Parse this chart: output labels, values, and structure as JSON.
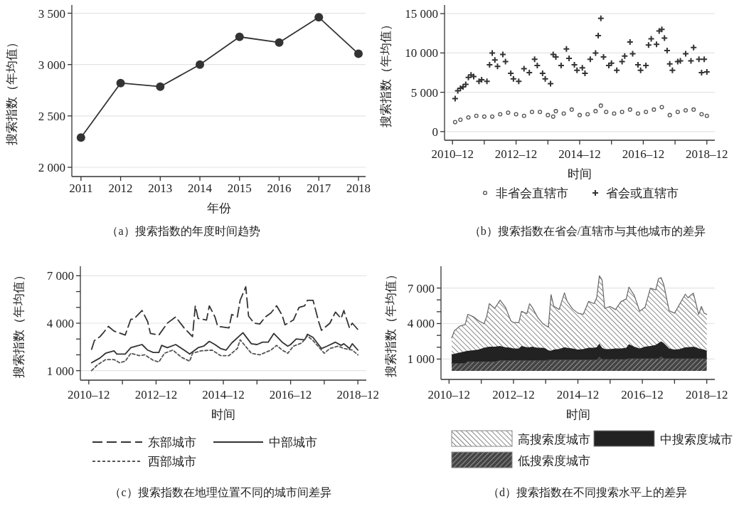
{
  "chart_data": [
    {
      "type": "line",
      "title": "（a）搜索指数的年度时间趋势",
      "xlabel": "年份",
      "ylabel": "搜索指数（年均值）",
      "marker": "circle",
      "grid": "y",
      "x": [
        2011,
        2012,
        2013,
        2014,
        2015,
        2016,
        2017,
        2018
      ],
      "series": [
        {
          "color": "#333333",
          "values": [
            2290,
            2820,
            2785,
            3000,
            3270,
            3215,
            3460,
            3105
          ]
        }
      ],
      "xlim": [
        2010.77,
        2018.18
      ],
      "xticks": [
        2011,
        2012,
        2013,
        2014,
        2015,
        2016,
        2017,
        2018
      ],
      "ylim": [
        1910,
        3580
      ],
      "yticks": [
        {
          "value": 2000,
          "label": "2 000"
        },
        {
          "value": 2500,
          "label": "2 500"
        },
        {
          "value": 3000,
          "label": "3 000"
        },
        {
          "value": 3500,
          "label": "3 500"
        }
      ]
    },
    {
      "type": "scatter",
      "title": "（b）搜索指数在省会/直辖市与其他城市的差异",
      "xlabel": "时间",
      "ylabel": "搜索指数（年均值）",
      "grid": "y",
      "legend": "bottom",
      "series": [
        {
          "name": "非省会直辖市",
          "color": "#555555",
          "marker": "circle",
          "x": [
            "2011-01",
            "2011-03",
            "2011-06",
            "2011-09",
            "2011-12",
            "2012-03",
            "2012-06",
            "2012-09",
            "2012-12",
            "2013-03",
            "2013-06",
            "2013-09",
            "2013-12",
            "2014-02",
            "2014-03",
            "2014-06",
            "2014-09",
            "2014-12",
            "2015-03",
            "2015-06",
            "2015-08",
            "2015-10",
            "2016-01",
            "2016-04",
            "2016-07",
            "2016-10",
            "2017-01",
            "2017-04",
            "2017-07",
            "2017-10",
            "2018-01",
            "2018-04",
            "2018-07",
            "2018-10",
            "2018-12"
          ],
          "values": [
            1200,
            1500,
            1800,
            2000,
            1900,
            1900,
            2200,
            2400,
            2200,
            2000,
            2500,
            2500,
            2100,
            1900,
            2600,
            2300,
            2800,
            2100,
            2200,
            2600,
            3300,
            2500,
            2300,
            2500,
            2800,
            2300,
            2500,
            2800,
            3100,
            2100,
            2500,
            2700,
            2800,
            2200,
            2000
          ]
        },
        {
          "name": "省会或直辖市",
          "color": "#333333",
          "marker": "cross",
          "x": [
            "2011-01",
            "2011-02",
            "2011-03",
            "2011-04",
            "2011-05",
            "2011-06",
            "2011-07",
            "2011-08",
            "2011-10",
            "2011-11",
            "2012-01",
            "2012-02",
            "2012-03",
            "2012-04",
            "2012-05",
            "2012-07",
            "2012-08",
            "2012-10",
            "2012-11",
            "2013-01",
            "2013-03",
            "2013-05",
            "2013-07",
            "2013-08",
            "2013-10",
            "2013-11",
            "2014-01",
            "2014-02",
            "2014-03",
            "2014-05",
            "2014-07",
            "2014-08",
            "2014-10",
            "2014-11",
            "2015-01",
            "2015-02",
            "2015-04",
            "2015-06",
            "2015-07",
            "2015-08",
            "2015-09",
            "2015-11",
            "2015-12",
            "2016-02",
            "2016-04",
            "2016-05",
            "2016-07",
            "2016-08",
            "2016-10",
            "2016-11",
            "2017-01",
            "2017-02",
            "2017-03",
            "2017-05",
            "2017-06",
            "2017-07",
            "2017-08",
            "2017-09",
            "2017-10",
            "2017-11",
            "2018-01",
            "2018-02",
            "2018-04",
            "2018-06",
            "2018-07",
            "2018-09",
            "2018-10",
            "2018-11",
            "2018-12"
          ],
          "values": [
            4200,
            5200,
            5500,
            5700,
            6000,
            6900,
            7200,
            7000,
            6400,
            6600,
            6400,
            8500,
            10000,
            9100,
            8300,
            9800,
            8900,
            7400,
            6700,
            6400,
            8000,
            7500,
            9200,
            8400,
            7400,
            6700,
            6100,
            9800,
            9500,
            8400,
            10500,
            9300,
            8500,
            7800,
            8100,
            7400,
            9200,
            10000,
            12200,
            14400,
            9500,
            8400,
            8700,
            7800,
            8900,
            9600,
            11400,
            9900,
            8500,
            7800,
            8400,
            11000,
            11800,
            11100,
            12800,
            13000,
            11900,
            10300,
            8600,
            7800,
            8900,
            9000,
            9900,
            9000,
            10700,
            9200,
            7500,
            9200,
            7600
          ]
        }
      ],
      "xlim": [
        "2010-09",
        "2019-03"
      ],
      "xticks": [
        {
          "value": "2010-12",
          "label": "2010–12"
        },
        {
          "value": "2011-12",
          "label": null
        },
        {
          "value": "2012-12",
          "label": "2012–12"
        },
        {
          "value": "2013-12",
          "label": null
        },
        {
          "value": "2014-12",
          "label": "2014–12"
        },
        {
          "value": "2015-12",
          "label": null
        },
        {
          "value": "2016-12",
          "label": "2016–12"
        },
        {
          "value": "2017-12",
          "label": null
        },
        {
          "value": "2018-12",
          "label": "2018–12"
        }
      ],
      "ylim": [
        -1100,
        16100
      ],
      "yticks": [
        0,
        {
          "value": 5000,
          "label": "5 000"
        },
        {
          "value": 10000,
          "label": "10 000"
        },
        {
          "value": 15000,
          "label": "15 000"
        }
      ]
    },
    {
      "type": "line",
      "title": "（c）搜索指数在地理位置不同的城市间差异",
      "xlabel": "时间",
      "ylabel": "搜索指数（年均值）",
      "grid": "y",
      "legend": "bottom",
      "series": [
        {
          "name": "东部城市",
          "color": "#333333",
          "line_style": "dashed",
          "x": [
            "2011-01",
            "2011-02",
            "2011-04",
            "2011-05",
            "2011-07",
            "2011-09",
            "2012-01",
            "2012-03",
            "2012-04",
            "2012-07",
            "2012-09",
            "2012-10",
            "2013-01",
            "2013-04",
            "2013-07",
            "2013-10",
            "2014-01",
            "2014-02",
            "2014-03",
            "2014-06",
            "2014-07",
            "2014-09",
            "2014-10",
            "2015-02",
            "2015-03",
            "2015-05",
            "2015-06",
            "2015-08",
            "2015-09",
            "2015-11",
            "2016-01",
            "2016-03",
            "2016-05",
            "2016-07",
            "2016-09",
            "2016-10",
            "2017-01",
            "2017-03",
            "2017-05",
            "2017-06",
            "2017-08",
            "2017-10",
            "2017-11",
            "2018-02",
            "2018-04",
            "2018-06",
            "2018-07",
            "2018-09",
            "2018-10",
            "2018-12"
          ],
          "values": [
            2350,
            2900,
            3150,
            3350,
            3800,
            3500,
            3250,
            4250,
            4250,
            4800,
            4100,
            3350,
            3250,
            4000,
            4400,
            3700,
            3150,
            5100,
            4300,
            4200,
            5100,
            4400,
            3800,
            3700,
            4550,
            4400,
            5450,
            6300,
            4450,
            4000,
            3950,
            4400,
            4650,
            5100,
            4500,
            3900,
            4200,
            5000,
            5100,
            5450,
            5450,
            4100,
            3550,
            4000,
            4700,
            4300,
            4800,
            3700,
            4000,
            3600
          ]
        },
        {
          "name": "中部城市",
          "color": "#333333",
          "line_style": "solid",
          "x": [
            "2011-01",
            "2011-04",
            "2011-06",
            "2011-09",
            "2011-10",
            "2012-01",
            "2012-03",
            "2012-05",
            "2012-07",
            "2012-09",
            "2012-11",
            "2013-01",
            "2013-02",
            "2013-04",
            "2013-07",
            "2013-10",
            "2013-12",
            "2014-03",
            "2014-05",
            "2014-07",
            "2014-09",
            "2014-11",
            "2015-01",
            "2015-03",
            "2015-07",
            "2015-10",
            "2015-12",
            "2016-02",
            "2016-04",
            "2016-06",
            "2016-09",
            "2016-11",
            "2016-12",
            "2017-02",
            "2017-05",
            "2017-06",
            "2017-08",
            "2017-11",
            "2018-01",
            "2018-04",
            "2018-06",
            "2018-07",
            "2018-09",
            "2018-10",
            "2018-12"
          ],
          "values": [
            1500,
            1800,
            2100,
            2250,
            2050,
            2050,
            2450,
            2550,
            2650,
            2300,
            2150,
            2150,
            2600,
            2450,
            2650,
            2300,
            2050,
            2450,
            2550,
            2850,
            2650,
            2400,
            2300,
            2750,
            3400,
            2700,
            2650,
            2800,
            2800,
            3350,
            2800,
            2550,
            2650,
            3000,
            2950,
            3300,
            3100,
            2400,
            2550,
            2800,
            2600,
            2700,
            2400,
            2700,
            2300
          ]
        },
        {
          "name": "西部城市",
          "color": "#555555",
          "line_style": "dotted",
          "x": [
            "2011-01",
            "2011-03",
            "2011-06",
            "2011-09",
            "2011-11",
            "2012-01",
            "2012-03",
            "2012-06",
            "2012-08",
            "2012-11",
            "2013-01",
            "2013-03",
            "2013-06",
            "2013-09",
            "2013-12",
            "2014-01",
            "2014-04",
            "2014-08",
            "2014-11",
            "2015-02",
            "2015-05",
            "2015-06",
            "2015-10",
            "2016-01",
            "2016-05",
            "2016-07",
            "2016-09",
            "2016-11",
            "2017-01",
            "2017-04",
            "2017-06",
            "2017-08",
            "2017-12",
            "2018-02",
            "2018-05",
            "2018-07",
            "2018-10",
            "2018-12"
          ],
          "values": [
            1000,
            1350,
            1700,
            1700,
            1500,
            1600,
            2100,
            1950,
            2000,
            1650,
            1550,
            2100,
            2300,
            1850,
            1600,
            2100,
            2250,
            2300,
            1950,
            1950,
            2400,
            2950,
            2100,
            2000,
            2300,
            2600,
            2300,
            2100,
            2550,
            2750,
            3200,
            2900,
            2100,
            2400,
            2550,
            2400,
            2300,
            2000
          ]
        }
      ],
      "xlim": [
        "2010-09",
        "2019-03"
      ],
      "xticks": [
        {
          "value": "2010-12",
          "label": "2010–12"
        },
        {
          "value": "2011-12",
          "label": null
        },
        {
          "value": "2012-12",
          "label": "2012–12"
        },
        {
          "value": "2013-12",
          "label": null
        },
        {
          "value": "2014-12",
          "label": "2014–12"
        },
        {
          "value": "2015-12",
          "label": null
        },
        {
          "value": "2016-12",
          "label": "2016–12"
        },
        {
          "value": "2017-12",
          "label": null
        },
        {
          "value": "2018-12",
          "label": "2018–12"
        }
      ],
      "ylim": [
        400,
        7600
      ],
      "yticks": [
        {
          "value": 1000,
          "label": "1 000"
        },
        {
          "value": 2000,
          "label": null
        },
        {
          "value": 3000,
          "label": null
        },
        {
          "value": 4000,
          "label": "4 000"
        },
        {
          "value": 5000,
          "label": null
        },
        {
          "value": 6000,
          "label": null
        },
        {
          "value": 7000,
          "label": "7 000"
        }
      ]
    },
    {
      "type": "area",
      "stacked": true,
      "title": "（d）搜索指数在不同搜索水平上的差异",
      "xlabel": "时间",
      "ylabel": "搜索指数（年均值）",
      "grid": "y",
      "legend": "bottom",
      "x": [
        "2011-01",
        "2011-02",
        "2011-04",
        "2011-06",
        "2011-07",
        "2011-09",
        "2011-11",
        "2012-01",
        "2012-02",
        "2012-03",
        "2012-05",
        "2012-07",
        "2012-09",
        "2012-11",
        "2012-12",
        "2013-02",
        "2013-03",
        "2013-05",
        "2013-06",
        "2013-07",
        "2013-09",
        "2013-11",
        "2013-12",
        "2014-01",
        "2014-02",
        "2014-03",
        "2014-05",
        "2014-07",
        "2014-08",
        "2014-10",
        "2014-12",
        "2015-02",
        "2015-04",
        "2015-06",
        "2015-07",
        "2015-08",
        "2015-09",
        "2015-10",
        "2015-12",
        "2016-02",
        "2016-04",
        "2016-06",
        "2016-07",
        "2016-09",
        "2016-11",
        "2017-01",
        "2017-03",
        "2017-05",
        "2017-06",
        "2017-07",
        "2017-08",
        "2017-10",
        "2017-12",
        "2018-02",
        "2018-04",
        "2018-05",
        "2018-07",
        "2018-08",
        "2018-09",
        "2018-10",
        "2018-11",
        "2018-12"
      ],
      "series": [
        {
          "name": "低搜索度城市",
          "color": "#444444",
          "values": [
            650,
            650,
            650,
            650,
            800,
            800,
            800,
            800,
            800,
            800,
            800,
            900,
            900,
            900,
            900,
            900,
            900,
            900,
            900,
            900,
            900,
            900,
            900,
            950,
            950,
            950,
            950,
            950,
            950,
            950,
            950,
            950,
            950,
            950,
            950,
            1200,
            1000,
            1000,
            1000,
            1000,
            1000,
            1000,
            1050,
            1050,
            1050,
            1050,
            1050,
            1050,
            1050,
            1250,
            1050,
            1050,
            1050,
            1050,
            1050,
            1050,
            1050,
            1050,
            1050,
            1050,
            1050,
            1050
          ]
        },
        {
          "name": "中搜索度城市",
          "color": "#222222",
          "values": [
            750,
            800,
            900,
            1000,
            900,
            950,
            1000,
            1150,
            1200,
            1250,
            1250,
            1200,
            1100,
            1050,
            1000,
            1000,
            1200,
            1100,
            1100,
            1150,
            1050,
            1050,
            1000,
            800,
            750,
            850,
            900,
            1050,
            1000,
            950,
            850,
            900,
            1000,
            1000,
            1050,
            1100,
            950,
            850,
            850,
            900,
            900,
            950,
            1200,
            1000,
            850,
            1000,
            1050,
            1150,
            1300,
            1250,
            1300,
            850,
            750,
            800,
            950,
            950,
            1000,
            950,
            850,
            800,
            750,
            650
          ]
        },
        {
          "name": "高搜索度城市",
          "color": "#666666",
          "values": [
            1380,
            1930,
            2230,
            2270,
            3080,
            2830,
            2440,
            2030,
            2580,
            3630,
            3230,
            3880,
            3380,
            2290,
            2180,
            2180,
            2940,
            2840,
            3680,
            3330,
            2570,
            2030,
            1940,
            1950,
            4740,
            3680,
            3330,
            4590,
            3930,
            3340,
            3080,
            2930,
            3930,
            3730,
            4180,
            5740,
            5730,
            3430,
            3590,
            3280,
            3940,
            4130,
            4830,
            4330,
            3140,
            3330,
            4880,
            4640,
            5430,
            5380,
            4930,
            3180,
            3080,
            3830,
            4480,
            4180,
            4530,
            3680,
            2880,
            3590,
            3080,
            3080
          ]
        }
      ],
      "xlim": [
        "2010-09",
        "2019-03"
      ],
      "xticks": [
        {
          "value": "2010-12",
          "label": "2010–12"
        },
        {
          "value": "2011-12",
          "label": null
        },
        {
          "value": "2012-12",
          "label": "2012–12"
        },
        {
          "value": "2013-12",
          "label": null
        },
        {
          "value": "2014-12",
          "label": "2014–12"
        },
        {
          "value": "2015-12",
          "label": null
        },
        {
          "value": "2016-12",
          "label": "2016–12"
        },
        {
          "value": "2017-12",
          "label": null
        },
        {
          "value": "2018-12",
          "label": "2018–12"
        }
      ],
      "ylim": [
        -720,
        8840
      ],
      "yticks": [
        {
          "value": 1000,
          "label": "1 000"
        },
        {
          "value": 2000,
          "label": null
        },
        {
          "value": 3000,
          "label": null
        },
        {
          "value": 4000,
          "label": "4 000"
        },
        {
          "value": 5000,
          "label": null
        },
        {
          "value": 6000,
          "label": null
        },
        {
          "value": 7000,
          "label": "7 000"
        }
      ]
    }
  ]
}
